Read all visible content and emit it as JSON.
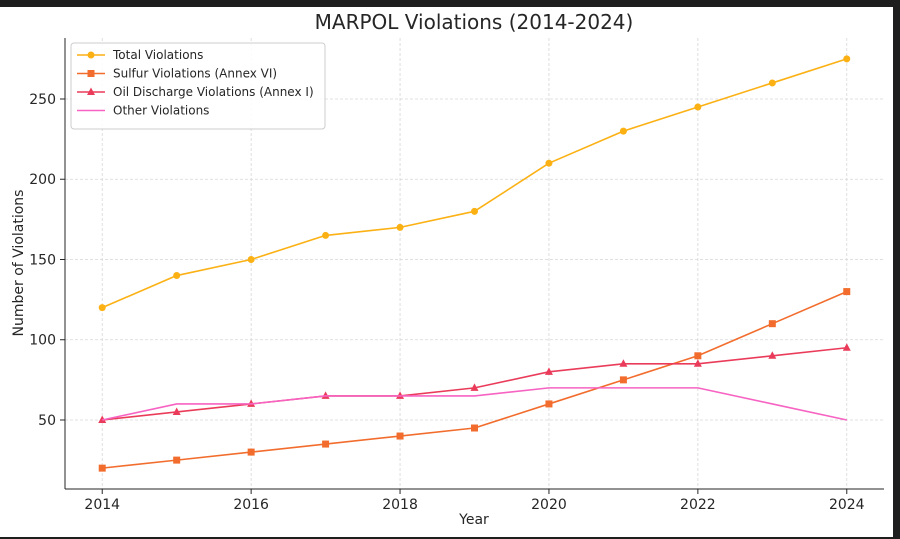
{
  "chart_data": {
    "type": "line",
    "title": "MARPOL Violations (2014-2024)",
    "xlabel": "Year",
    "ylabel": "Number of Violations",
    "x": [
      2014,
      2015,
      2016,
      2017,
      2018,
      2019,
      2020,
      2021,
      2022,
      2023,
      2024
    ],
    "xlim": [
      2013.5,
      2024.5
    ],
    "ylim": [
      7,
      288
    ],
    "xticks": [
      2014,
      2016,
      2018,
      2020,
      2022,
      2024
    ],
    "yticks": [
      50,
      100,
      150,
      200,
      250
    ],
    "grid": true,
    "legend_position": "top-left",
    "series": [
      {
        "name": "Total Violations",
        "color": "#fbb114",
        "marker": "circle",
        "values": [
          120,
          140,
          150,
          165,
          170,
          180,
          210,
          230,
          245,
          260,
          275
        ]
      },
      {
        "name": "Sulfur Violations (Annex VI)",
        "color": "#f26d2d",
        "marker": "square",
        "values": [
          20,
          25,
          30,
          35,
          40,
          45,
          60,
          75,
          90,
          110,
          130
        ]
      },
      {
        "name": "Oil Discharge Violations (Annex I)",
        "color": "#ea3c5a",
        "marker": "triangle",
        "values": [
          50,
          55,
          60,
          65,
          65,
          70,
          80,
          85,
          85,
          90,
          95
        ]
      },
      {
        "name": "Other Violations",
        "color": "#f763c2",
        "marker": "none",
        "values": [
          50,
          60,
          60,
          65,
          65,
          65,
          70,
          70,
          70,
          60,
          50
        ]
      }
    ]
  }
}
